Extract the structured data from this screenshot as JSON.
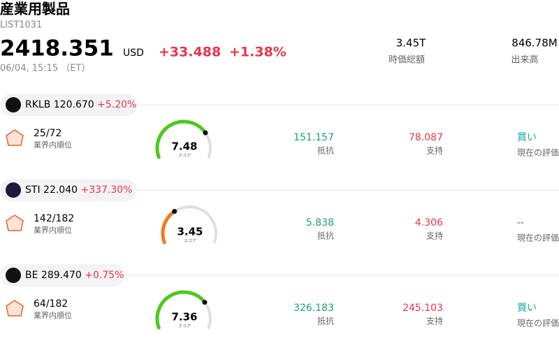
{
  "header": {
    "title": "産業用製品",
    "code": "LIST1031",
    "price": "2418.351",
    "currency": "USD",
    "change": "+33.488",
    "change_pct": "+1.38%",
    "time": "06/04, 15:15 （ET）",
    "market_cap": "3.45T",
    "market_cap_label": "時価総額",
    "volume": "846.78M",
    "volume_label": "出来高"
  },
  "stocks": [
    {
      "ticker": "RKLB",
      "price": "120.670",
      "change": "+5.20%",
      "rank": "25/72",
      "rank_label": "業界内順位",
      "score": 7.48,
      "score_label": "スコア",
      "resistance": "151.157",
      "resistance_label": "抵抗",
      "support": "78.087",
      "support_label": "支持",
      "rating": "買い",
      "rating_label": "現在の評価"
    },
    {
      "ticker": "STI",
      "price": "22.040",
      "change": "+337.30%",
      "rank": "142/182",
      "rank_label": "業界内順位",
      "score": 3.45,
      "score_label": "スコア",
      "resistance": "5.838",
      "resistance_label": "抵抗",
      "support": "4.306",
      "support_label": "支持",
      "rating": "--",
      "rating_label": "現在の評価"
    },
    {
      "ticker": "BE",
      "price": "289.470",
      "change": "+0.75%",
      "rank": "64/182",
      "rank_label": "業界内順位",
      "score": 7.36,
      "score_label": "スコア",
      "resistance": "326.183",
      "resistance_label": "抵抗",
      "support": "245.103",
      "support_label": "支持",
      "rating": "買い",
      "rating_label": "現在の評価"
    }
  ]
}
